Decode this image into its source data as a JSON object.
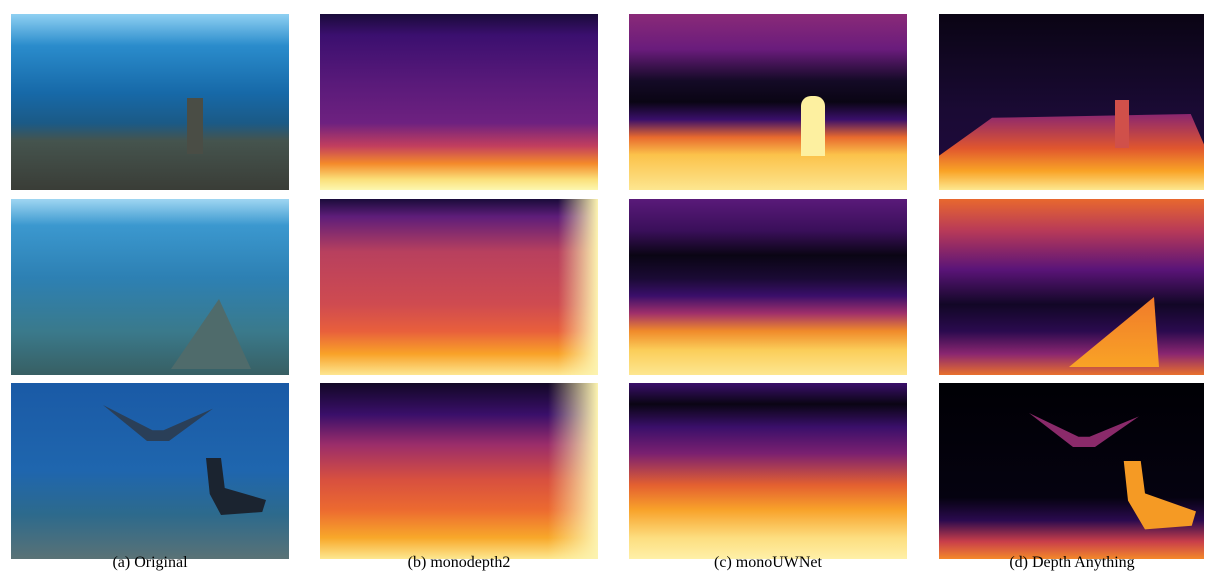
{
  "captions": [
    "(a) Original",
    "(b) monodepth2",
    "(c) monoUWNet",
    "(d) Depth Anything"
  ]
}
